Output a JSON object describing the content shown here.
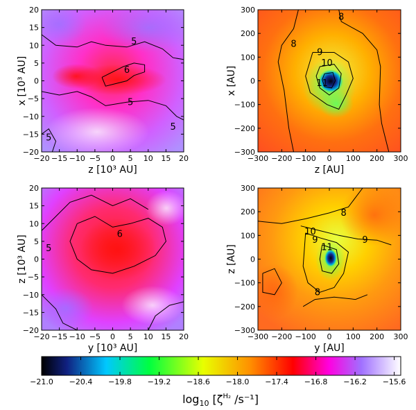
{
  "chart_data": [
    {
      "type": "heatmap",
      "panel": "top-left",
      "xlabel": "z [10³ AU]",
      "ylabel": "x [10³ AU]",
      "xlim": [
        -20,
        20
      ],
      "ylim": [
        -20,
        20
      ],
      "xticks": [
        -20,
        -15,
        -10,
        -5,
        0,
        5,
        10,
        15,
        20
      ],
      "yticks": [
        -20,
        -15,
        -10,
        -5,
        0,
        5,
        10,
        15,
        20
      ],
      "contour_labels": [
        {
          "text": "5",
          "x": 6,
          "y": 11
        },
        {
          "text": "6",
          "x": 4,
          "y": 3
        },
        {
          "text": "5",
          "x": 5,
          "y": -6
        },
        {
          "text": "5",
          "x": 17,
          "y": -13
        },
        {
          "text": "5",
          "x": -18,
          "y": -16
        }
      ],
      "contours": [
        [
          [
            -20,
            13
          ],
          [
            -16,
            10
          ],
          [
            -10,
            9.5
          ],
          [
            -6,
            11
          ],
          [
            -2,
            10
          ],
          [
            4,
            9.5
          ],
          [
            9,
            11
          ],
          [
            14,
            9
          ],
          [
            17,
            6.5
          ],
          [
            20,
            6
          ]
        ],
        [
          [
            -3,
            1
          ],
          [
            0,
            2.5
          ],
          [
            3,
            4
          ],
          [
            6,
            5
          ],
          [
            9,
            4.5
          ],
          [
            9,
            2.5
          ],
          [
            6,
            1.5
          ],
          [
            4,
            0
          ],
          [
            0,
            -1
          ],
          [
            -2,
            -1.5
          ],
          [
            -3,
            1
          ]
        ],
        [
          [
            -20,
            -3
          ],
          [
            -15,
            -4
          ],
          [
            -10,
            -3
          ],
          [
            -6,
            -4.5
          ],
          [
            -2,
            -7
          ],
          [
            4,
            -6
          ],
          [
            10,
            -5.5
          ],
          [
            15,
            -7
          ],
          [
            18,
            -10
          ],
          [
            20,
            -11
          ]
        ],
        [
          [
            -20,
            -15
          ],
          [
            -18,
            -13.5
          ],
          [
            -16,
            -17
          ],
          [
            -17,
            -20
          ]
        ]
      ],
      "colorbar_field": "log10 ionization rate"
    },
    {
      "type": "heatmap",
      "panel": "top-right",
      "xlabel": "z [AU]",
      "ylabel": "x [AU]",
      "xlim": [
        -300,
        300
      ],
      "ylim": [
        -300,
        300
      ],
      "xticks": [
        -300,
        -200,
        -100,
        0,
        100,
        200,
        300
      ],
      "yticks": [
        -300,
        -200,
        -100,
        0,
        100,
        200,
        300
      ],
      "contour_labels": [
        {
          "text": "8",
          "x": 50,
          "y": 270
        },
        {
          "text": "8",
          "x": -150,
          "y": 155
        },
        {
          "text": "9",
          "x": -40,
          "y": 120
        },
        {
          "text": "10",
          "x": -10,
          "y": 75
        },
        {
          "text": "11",
          "x": -30,
          "y": -10
        }
      ],
      "contours": [
        [
          [
            40,
            300
          ],
          [
            50,
            250
          ],
          [
            140,
            200
          ],
          [
            200,
            130
          ],
          [
            215,
            60
          ],
          [
            210,
            -100
          ],
          [
            220,
            -180
          ],
          [
            250,
            -300
          ]
        ],
        [
          [
            -130,
            300
          ],
          [
            -150,
            220
          ],
          [
            -200,
            150
          ],
          [
            -215,
            80
          ],
          [
            -190,
            -40
          ],
          [
            -170,
            -200
          ],
          [
            -150,
            -300
          ]
        ],
        [
          [
            -70,
            120
          ],
          [
            20,
            120
          ],
          [
            80,
            80
          ],
          [
            100,
            10
          ],
          [
            70,
            -60
          ],
          [
            40,
            -120
          ],
          [
            -10,
            -100
          ],
          [
            -80,
            -50
          ],
          [
            -100,
            20
          ],
          [
            -70,
            120
          ]
        ],
        [
          [
            -40,
            60
          ],
          [
            20,
            70
          ],
          [
            50,
            30
          ],
          [
            40,
            -30
          ],
          [
            0,
            -60
          ],
          [
            -40,
            -30
          ],
          [
            -55,
            20
          ],
          [
            -40,
            60
          ]
        ],
        [
          [
            -20,
            30
          ],
          [
            15,
            35
          ],
          [
            25,
            0
          ],
          [
            10,
            -30
          ],
          [
            -20,
            -25
          ],
          [
            -30,
            5
          ],
          [
            -20,
            30
          ]
        ]
      ],
      "colorbar_field": "log10 ionization rate"
    },
    {
      "type": "heatmap",
      "panel": "bottom-left",
      "xlabel": "y [10³ AU]",
      "ylabel": "z [10³ AU]",
      "xlim": [
        -20,
        20
      ],
      "ylim": [
        -20,
        20
      ],
      "xticks": [
        -20,
        -15,
        -10,
        -5,
        0,
        5,
        10,
        15,
        20
      ],
      "yticks": [
        -20,
        -15,
        -10,
        -5,
        0,
        5,
        10,
        15,
        20
      ],
      "contour_labels": [
        {
          "text": "6",
          "x": 2,
          "y": 7
        },
        {
          "text": "5",
          "x": -18,
          "y": 3
        }
      ],
      "contours": [
        [
          [
            -10,
            10
          ],
          [
            -5,
            12
          ],
          [
            0,
            9
          ],
          [
            5,
            10
          ],
          [
            10,
            11.5
          ],
          [
            14,
            9
          ],
          [
            15,
            5
          ],
          [
            12,
            1
          ],
          [
            6,
            -2
          ],
          [
            0,
            -4
          ],
          [
            -6,
            -3
          ],
          [
            -10,
            0
          ],
          [
            -12,
            5
          ],
          [
            -10,
            10
          ]
        ],
        [
          [
            -20,
            8
          ],
          [
            -16,
            12
          ],
          [
            -12,
            16
          ],
          [
            -6,
            18
          ],
          [
            0,
            15
          ],
          [
            5,
            17
          ],
          [
            10,
            14
          ]
        ],
        [
          [
            -20,
            -10
          ],
          [
            -16,
            -14
          ],
          [
            -14,
            -18
          ],
          [
            -10,
            -20
          ]
        ],
        [
          [
            10,
            -20
          ],
          [
            12,
            -16
          ],
          [
            16,
            -13
          ],
          [
            20,
            -12
          ]
        ]
      ],
      "colorbar_field": "log10 ionization rate"
    },
    {
      "type": "heatmap",
      "panel": "bottom-right",
      "xlabel": "y [AU]",
      "ylabel": "z [AU]",
      "xlim": [
        -300,
        300
      ],
      "ylim": [
        -300,
        300
      ],
      "xticks": [
        -300,
        -200,
        -100,
        0,
        100,
        200,
        300
      ],
      "yticks": [
        -300,
        -200,
        -100,
        0,
        100,
        200,
        300
      ],
      "contour_labels": [
        {
          "text": "8",
          "x": 60,
          "y": 195
        },
        {
          "text": "10",
          "x": -80,
          "y": 115
        },
        {
          "text": "9",
          "x": -60,
          "y": 80
        },
        {
          "text": "11",
          "x": -10,
          "y": 50
        },
        {
          "text": "9",
          "x": 150,
          "y": 80
        },
        {
          "text": "8",
          "x": -50,
          "y": -140
        }
      ],
      "contours": [
        [
          [
            -300,
            160
          ],
          [
            -200,
            150
          ],
          [
            -100,
            170
          ],
          [
            0,
            195
          ],
          [
            80,
            220
          ],
          [
            140,
            300
          ]
        ],
        [
          [
            -120,
            140
          ],
          [
            -40,
            120
          ],
          [
            40,
            100
          ],
          [
            120,
            85
          ],
          [
            200,
            80
          ],
          [
            260,
            60
          ]
        ],
        [
          [
            -100,
            110
          ],
          [
            -40,
            90
          ],
          [
            30,
            70
          ],
          [
            80,
            30
          ],
          [
            60,
            -60
          ],
          [
            20,
            -120
          ],
          [
            -40,
            -140
          ],
          [
            -90,
            -100
          ],
          [
            -110,
            -30
          ],
          [
            -100,
            110
          ]
        ],
        [
          [
            -30,
            60
          ],
          [
            30,
            40
          ],
          [
            40,
            -20
          ],
          [
            10,
            -60
          ],
          [
            -30,
            -50
          ],
          [
            -40,
            0
          ],
          [
            -30,
            60
          ]
        ],
        [
          [
            -280,
            -60
          ],
          [
            -230,
            -40
          ],
          [
            -200,
            -100
          ],
          [
            -230,
            -150
          ],
          [
            -280,
            -140
          ],
          [
            -280,
            -60
          ]
        ],
        [
          [
            -110,
            -200
          ],
          [
            -60,
            -170
          ],
          [
            20,
            -160
          ],
          [
            110,
            -170
          ],
          [
            160,
            -150
          ]
        ]
      ],
      "colorbar_field": "log10 ionization rate"
    }
  ],
  "colorbar": {
    "min": -21.0,
    "max": -15.5,
    "ticks": [
      "-21.0",
      "-20.4",
      "-19.8",
      "-19.2",
      "-18.6",
      "-18.0",
      "-17.4",
      "-16.8",
      "-16.2",
      "-15.6"
    ],
    "label_main": "log",
    "label_sub": "10",
    "label_rest": " [ζ",
    "label_sup": "H₂",
    "label_tail": " /s⁻¹]",
    "stops": [
      "#000000",
      "#1040a0",
      "#00c0ff",
      "#00ff60",
      "#f0f000",
      "#ff8000",
      "#ff0000",
      "#ff00ff",
      "#9060ff",
      "#ffffff"
    ]
  }
}
